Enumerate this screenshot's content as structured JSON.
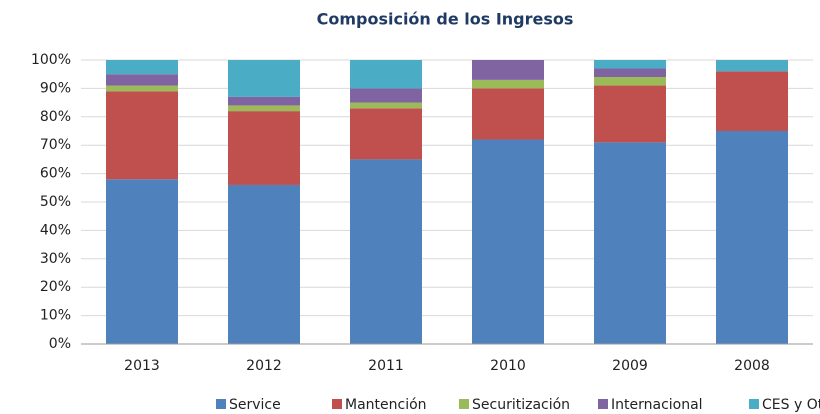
{
  "chart_data": {
    "type": "stacked_bar",
    "title": "Composición de los Ingresos",
    "categories": [
      "2013",
      "2012",
      "2011",
      "2010",
      "2009",
      "2008"
    ],
    "series": [
      {
        "name": "Service",
        "color": "#4f81bd",
        "values": [
          58,
          56,
          65,
          72,
          71,
          75
        ]
      },
      {
        "name": "Mantención",
        "color": "#c0504d",
        "values": [
          31,
          26,
          18,
          18,
          20,
          21
        ]
      },
      {
        "name": "Securitización",
        "color": "#9bbb59",
        "values": [
          2,
          2,
          2,
          3,
          3,
          0
        ]
      },
      {
        "name": "Internacional",
        "color": "#8064a2",
        "values": [
          4,
          3,
          5,
          7,
          3,
          0
        ]
      },
      {
        "name": "CES y Otros",
        "color": "#4bacc6",
        "values": [
          5,
          13,
          10,
          0,
          3,
          4
        ]
      }
    ],
    "ylim": [
      0,
      100
    ],
    "yticks": [
      {
        "value": 0,
        "label": "0%"
      },
      {
        "value": 10,
        "label": "10%"
      },
      {
        "value": 20,
        "label": "20%"
      },
      {
        "value": 30,
        "label": "30%"
      },
      {
        "value": 40,
        "label": "40%"
      },
      {
        "value": 50,
        "label": "50%"
      },
      {
        "value": 60,
        "label": "60%"
      },
      {
        "value": 70,
        "label": "70%"
      },
      {
        "value": 80,
        "label": "80%"
      },
      {
        "value": 90,
        "label": "90%"
      },
      {
        "value": 100,
        "label": "100%"
      }
    ],
    "grid": true,
    "legend": "bottom"
  }
}
